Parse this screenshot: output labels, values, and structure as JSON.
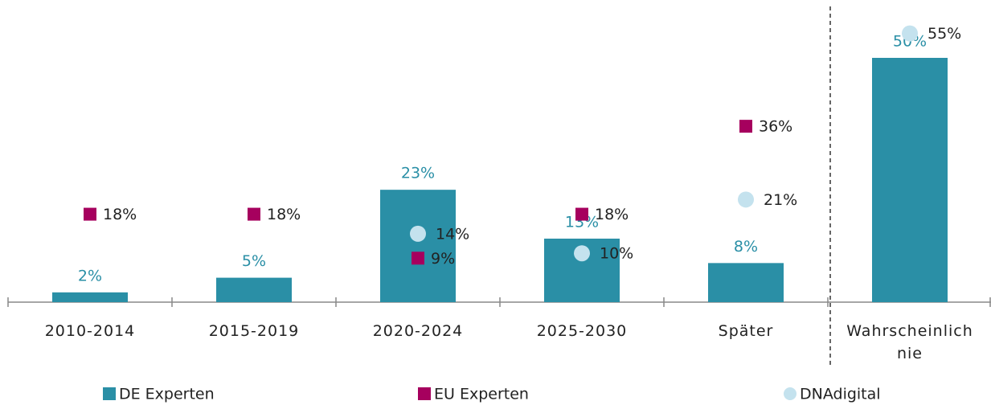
{
  "chart_data": {
    "type": "bar",
    "categories": [
      "2010-2014",
      "2015-2019",
      "2020-2024",
      "2025-2030",
      "Später",
      "Wahrscheinlich nie"
    ],
    "series": [
      {
        "name": "DE Experten",
        "color": "#2a8fa6",
        "marker": "bar",
        "values": [
          2,
          5,
          23,
          13,
          8,
          50
        ],
        "value_labels": [
          "2%",
          "5%",
          "23%",
          "13%",
          "8%",
          "50%"
        ]
      },
      {
        "name": "EU Experten",
        "color": "#a6005e",
        "marker": "square",
        "values": [
          18,
          18,
          9,
          18,
          36,
          null
        ],
        "value_labels": [
          "18%",
          "18%",
          "9%",
          "18%",
          "36%",
          null
        ]
      },
      {
        "name": "DNAdigital",
        "color": "#c4e2ee",
        "marker": "circle",
        "values": [
          null,
          null,
          14,
          10,
          21,
          55
        ],
        "value_labels": [
          null,
          null,
          "14%",
          "10%",
          "21%",
          "55%"
        ]
      }
    ],
    "grid": false
  }
}
